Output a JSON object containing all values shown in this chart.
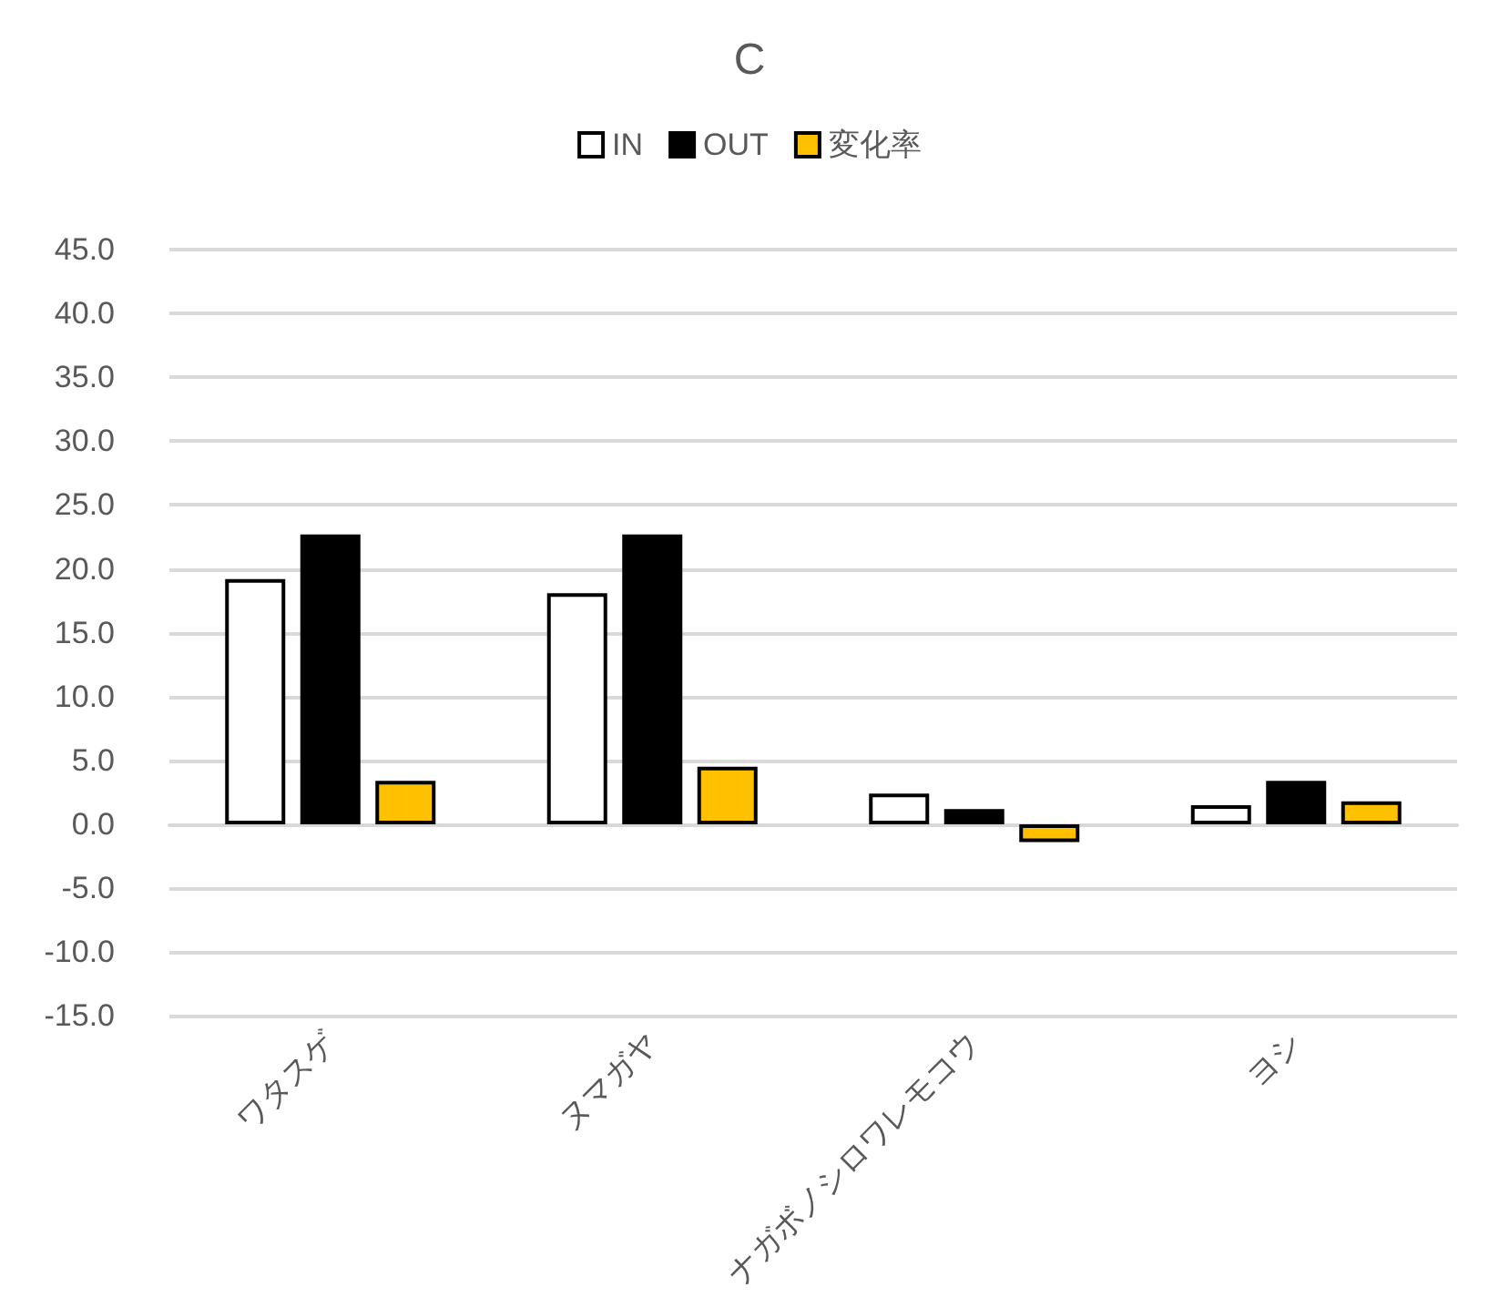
{
  "chart_data": {
    "type": "bar",
    "title": "C",
    "categories": [
      "ワタスゲ",
      "ヌマガヤ",
      "ナガボノシロワレモコウ",
      "ヨシ"
    ],
    "series": [
      {
        "name": "IN",
        "color": "#ffffff",
        "values": [
          19.2,
          18.1,
          2.4,
          1.5
        ]
      },
      {
        "name": "OUT",
        "color": "#000000",
        "values": [
          22.7,
          22.7,
          1.2,
          3.4
        ]
      },
      {
        "name": "変化率",
        "color": "#ffc000",
        "values": [
          3.4,
          4.5,
          -1.4,
          1.8
        ]
      }
    ],
    "ylim": [
      -15,
      45
    ],
    "yticks": [
      {
        "value": -15,
        "label": "-15.0"
      },
      {
        "value": -10,
        "label": "-10.0"
      },
      {
        "value": -5,
        "label": "-5.0"
      },
      {
        "value": 0,
        "label": "0.0"
      },
      {
        "value": 5,
        "label": "5.0"
      },
      {
        "value": 10,
        "label": "10.0"
      },
      {
        "value": 15,
        "label": "15.0"
      },
      {
        "value": 20,
        "label": "20.0"
      },
      {
        "value": 25,
        "label": "25.0"
      },
      {
        "value": 30,
        "label": "30.0"
      },
      {
        "value": 35,
        "label": "35.0"
      },
      {
        "value": 40,
        "label": "40.0"
      },
      {
        "value": 45,
        "label": "45.0"
      }
    ],
    "grid": "y",
    "legend": "top"
  }
}
